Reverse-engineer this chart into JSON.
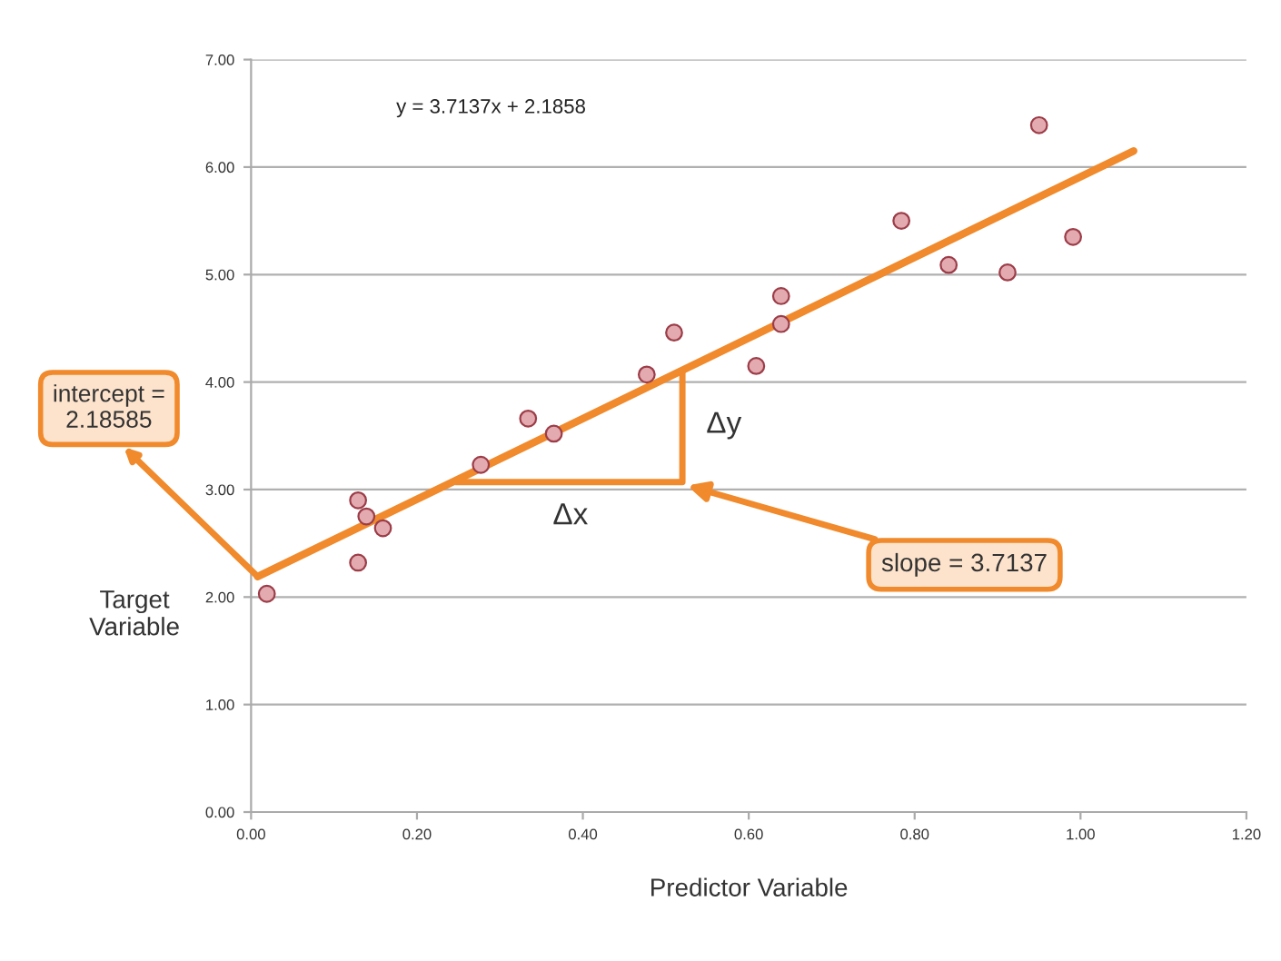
{
  "chart_data": {
    "type": "scatter",
    "xlabel": "Predictor Variable",
    "ylabel": "Target\nVariable",
    "xlim": [
      0,
      1.2
    ],
    "xticks": [
      {
        "value": 0,
        "label": "0.00"
      },
      {
        "value": 0.2,
        "label": "0.20"
      },
      {
        "value": 0.4,
        "label": "0.40"
      },
      {
        "value": 0.6,
        "label": "0.60"
      },
      {
        "value": 0.8,
        "label": "0.80"
      },
      {
        "value": 1.0,
        "label": "1.00"
      },
      {
        "value": 1.2,
        "label": "1.20"
      }
    ],
    "ylim": [
      0,
      7
    ],
    "yticks": [
      {
        "value": 0,
        "label": "0.00"
      },
      {
        "value": 1,
        "label": "1.00"
      },
      {
        "value": 2,
        "label": "2.00"
      },
      {
        "value": 3,
        "label": "3.00"
      },
      {
        "value": 4,
        "label": "4.00"
      },
      {
        "value": 5,
        "label": "5.00"
      },
      {
        "value": 6,
        "label": "6.00"
      },
      {
        "value": 7,
        "label": "7.00"
      }
    ],
    "grid": "y",
    "series": [
      {
        "marker": "circle",
        "color": "#e3aab0",
        "x": [
          0.019,
          0.129,
          0.139,
          0.159,
          0.129,
          0.277,
          0.334,
          0.365,
          0.477,
          0.51,
          0.609,
          0.639,
          0.639,
          0.784,
          0.841,
          0.912,
          0.95,
          0.991
        ],
        "values": [
          2.03,
          2.9,
          2.75,
          2.64,
          2.32,
          3.23,
          3.66,
          3.52,
          4.07,
          4.46,
          4.15,
          4.8,
          4.54,
          5.5,
          5.09,
          5.02,
          6.39,
          5.35
        ]
      },
      {
        "type": "line",
        "color": "#f08a2c",
        "x": [
          0.008,
          1.064
        ],
        "values": [
          2.19,
          6.15
        ]
      }
    ],
    "annotations": [
      "y = 3.7137x + 2.1858",
      {
        "text": "intercept =\n2.18585",
        "x": 0.008,
        "y": 2.19
      },
      "slope = 3.7137",
      "Δx",
      "Δy"
    ]
  }
}
